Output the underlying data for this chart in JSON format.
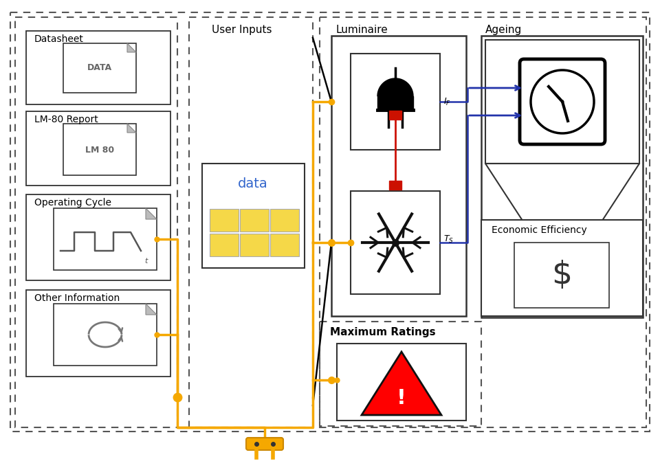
{
  "bg": "#ffffff",
  "dash_color": "#555555",
  "solid_color": "#333333",
  "orange": "#F5A800",
  "blue": "#2233AA",
  "red": "#CC1100",
  "user_inputs_label": "User Inputs",
  "luminaire_label": "Luminaire",
  "ageing_label": "Ageing",
  "econ_label": "Economic Efficiency",
  "max_ratings_label": "Maximum Ratings",
  "datasheet_label": "Datasheet",
  "datasheet_icon": "DATA",
  "lm80_label": "LM-80 Report",
  "lm80_icon": "LM 80",
  "opcycle_label": "Operating Cycle",
  "othinfo_label": "Other Information"
}
